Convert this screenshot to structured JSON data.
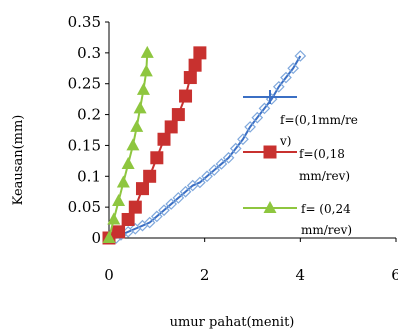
{
  "chart_data": {
    "type": "line",
    "xlabel": "umur pahat(menit)",
    "ylabel": "Keausan(mm)",
    "xlim": [
      0,
      6
    ],
    "ylim": [
      0,
      0.35
    ],
    "x_ticks": [
      "0",
      "2",
      "4",
      "6"
    ],
    "y_ticks": [
      "0",
      "0.05",
      "0.1",
      "0.15",
      "0.2",
      "0.25",
      "0.3",
      "0.35"
    ],
    "grid": false,
    "legend_position": "right",
    "series": [
      {
        "name": "f=(0,1mm/rev)",
        "legend_lines": [
          "f=(0,1mm/re",
          "v)"
        ],
        "color": "#3b6fc4",
        "marker": "diamond",
        "x": [
          0.15,
          0.25,
          0.4,
          0.55,
          0.7,
          0.85,
          1.0,
          1.15,
          1.3,
          1.45,
          1.6,
          1.75,
          1.9,
          2.05,
          2.2,
          2.35,
          2.5,
          2.65,
          2.8,
          2.95,
          3.1,
          3.25,
          3.4,
          3.55,
          3.7,
          3.85,
          4.0
        ],
        "y": [
          0.0,
          0.005,
          0.01,
          0.015,
          0.02,
          0.025,
          0.035,
          0.045,
          0.055,
          0.065,
          0.075,
          0.085,
          0.09,
          0.1,
          0.11,
          0.12,
          0.13,
          0.145,
          0.16,
          0.18,
          0.195,
          0.21,
          0.225,
          0.245,
          0.26,
          0.275,
          0.295
        ]
      },
      {
        "name": "f=(0,18 mm/rev)",
        "legend_lines": [
          "f=(0,18",
          "mm/rev)"
        ],
        "color": "#c8312f",
        "marker": "square",
        "x": [
          0.0,
          0.2,
          0.4,
          0.55,
          0.7,
          0.85,
          1.0,
          1.15,
          1.3,
          1.45,
          1.6,
          1.7,
          1.8,
          1.9
        ],
        "y": [
          0.0,
          0.01,
          0.03,
          0.05,
          0.08,
          0.1,
          0.13,
          0.16,
          0.18,
          0.2,
          0.23,
          0.26,
          0.28,
          0.3
        ]
      },
      {
        "name": "f= (0,24 mm/rev)",
        "legend_lines": [
          "f= (0,24",
          "mm/rev)"
        ],
        "color": "#8ec63f",
        "marker": "triangle",
        "x": [
          0.0,
          0.1,
          0.2,
          0.3,
          0.4,
          0.5,
          0.58,
          0.65,
          0.72,
          0.78,
          0.8
        ],
        "y": [
          0.0,
          0.03,
          0.06,
          0.09,
          0.12,
          0.15,
          0.18,
          0.21,
          0.24,
          0.27,
          0.3
        ]
      }
    ]
  }
}
